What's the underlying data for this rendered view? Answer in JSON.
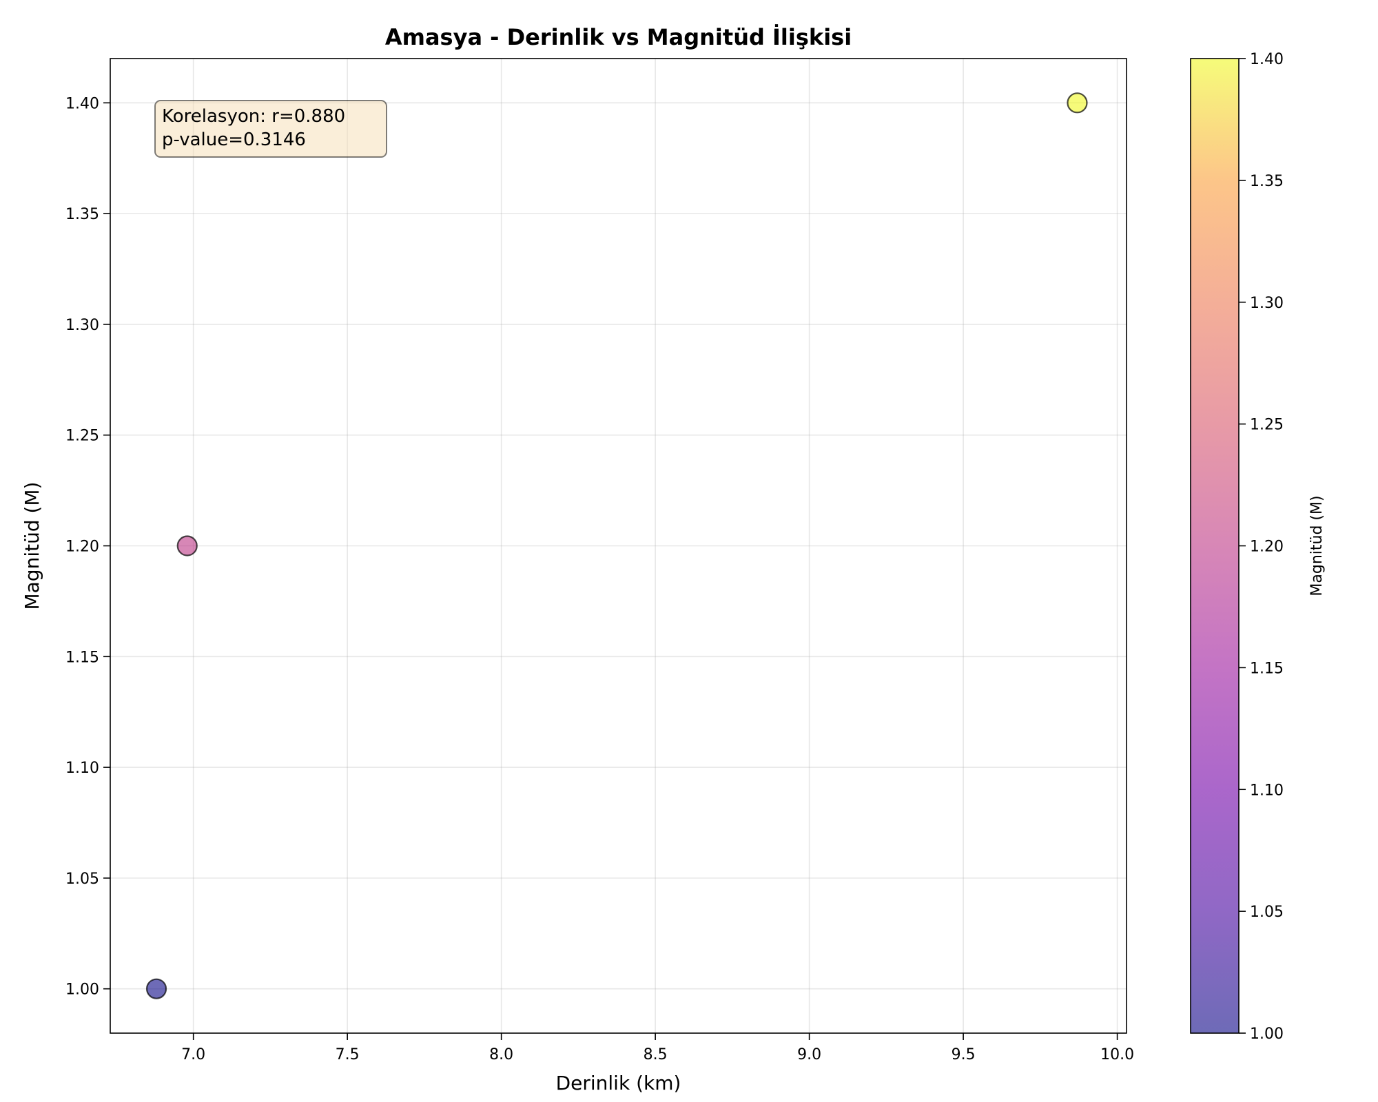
{
  "chart_data": {
    "type": "scatter",
    "title": "Amasya - Derinlik vs Magnitüd İlişkisi",
    "xlabel": "Derinlik (km)",
    "ylabel": "Magnitüd (M)",
    "xlim": [
      6.73,
      10.03
    ],
    "ylim": [
      0.98,
      1.42
    ],
    "xticks": [
      7.0,
      7.5,
      8.0,
      8.5,
      9.0,
      9.5,
      10.0
    ],
    "yticks": [
      1.0,
      1.05,
      1.1,
      1.15,
      1.2,
      1.25,
      1.3,
      1.35,
      1.4
    ],
    "x_tick_labels": [
      "7.0",
      "7.5",
      "8.0",
      "8.5",
      "9.0",
      "9.5",
      "10.0"
    ],
    "y_tick_labels": [
      "1.00",
      "1.05",
      "1.10",
      "1.15",
      "1.20",
      "1.25",
      "1.30",
      "1.35",
      "1.40"
    ],
    "grid": true,
    "points": [
      {
        "x": 6.88,
        "y": 1.0
      },
      {
        "x": 6.98,
        "y": 1.2
      },
      {
        "x": 9.87,
        "y": 1.4
      }
    ],
    "annotation": {
      "line1": "Korelasyon: r=0.880",
      "line2": "p-value=0.3146",
      "placement": "top-left"
    },
    "colorbar": {
      "label": "Magnitüd (M)",
      "range": [
        1.0,
        1.4
      ],
      "ticks": [
        1.0,
        1.05,
        1.1,
        1.15,
        1.2,
        1.25,
        1.3,
        1.35,
        1.4
      ],
      "tick_labels": [
        "1.00",
        "1.05",
        "1.10",
        "1.15",
        "1.20",
        "1.25",
        "1.30",
        "1.35",
        "1.40"
      ],
      "colormap": "plasma",
      "alpha": 0.6
    }
  }
}
